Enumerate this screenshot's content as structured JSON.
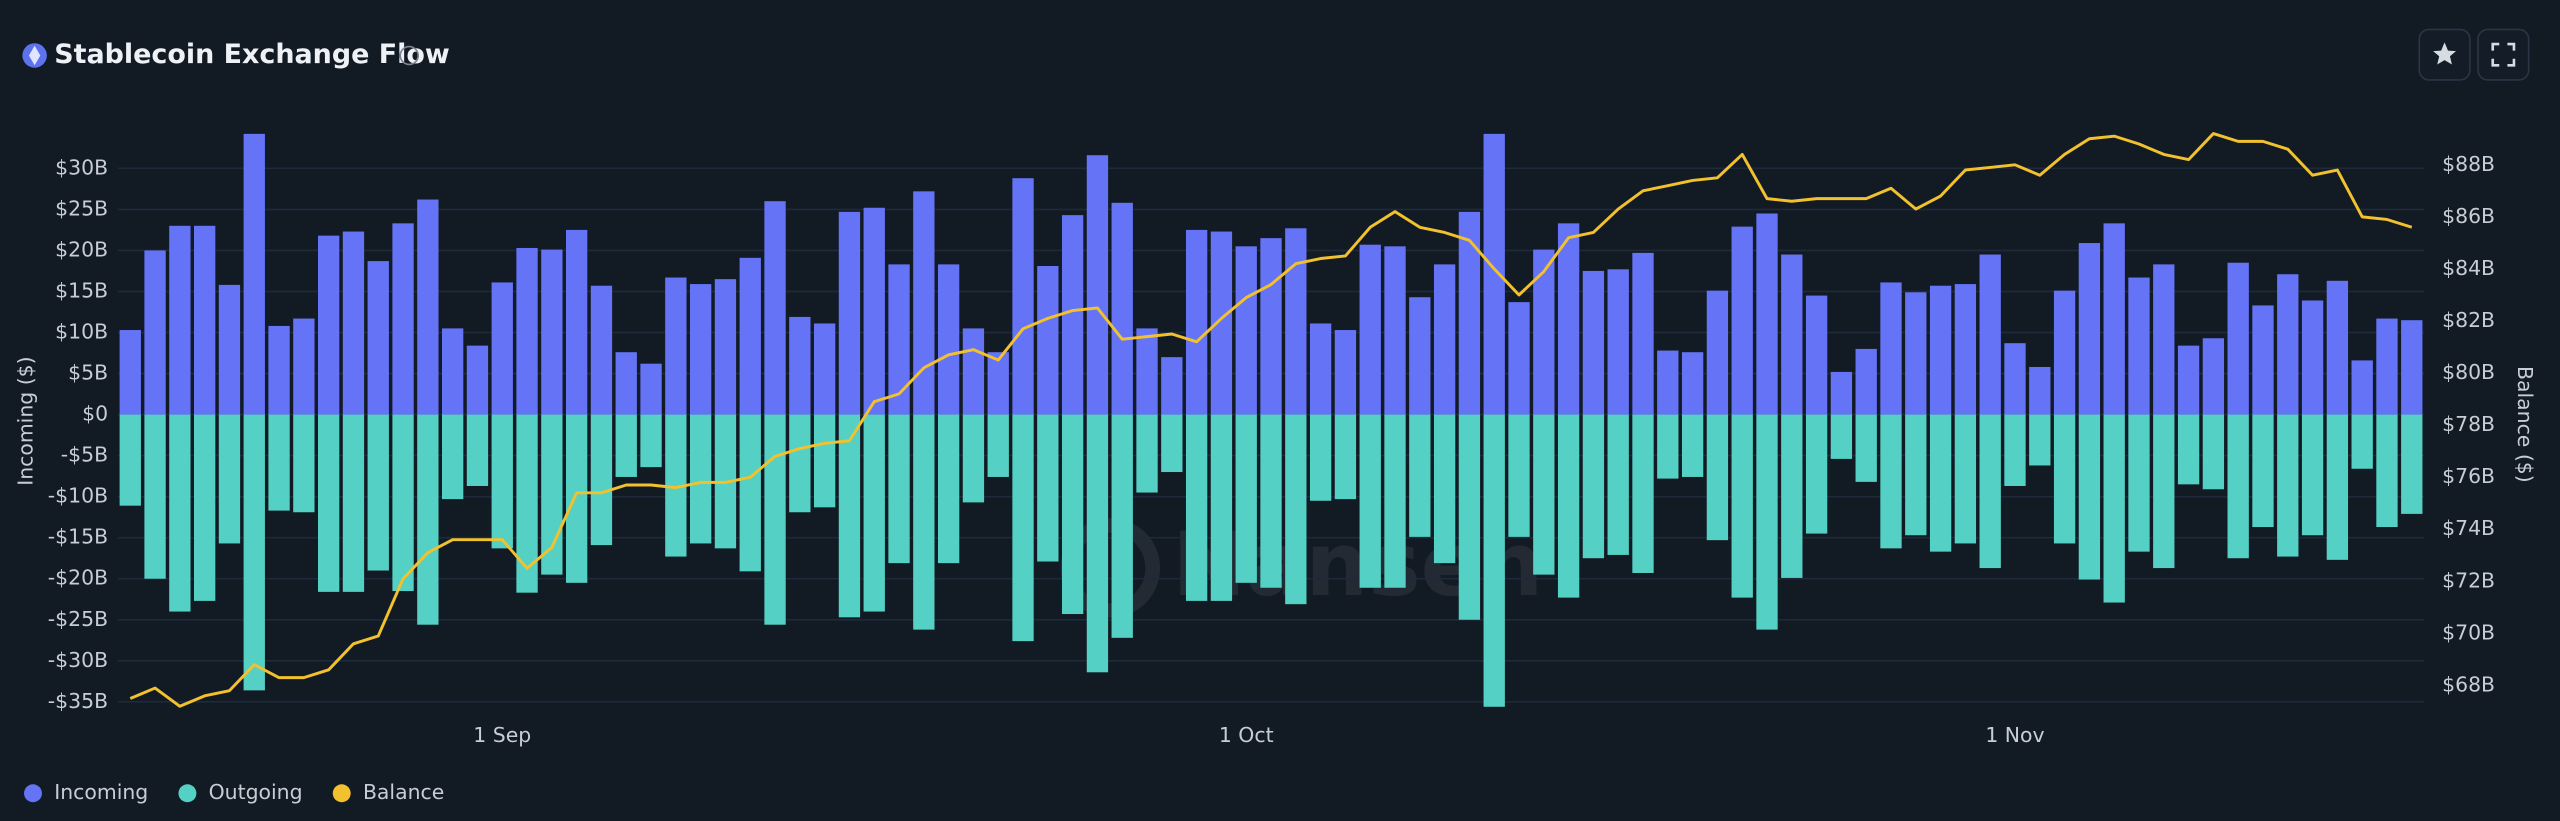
{
  "chart_data": {
    "type": "bar",
    "title": "Stablecoin Exchange Flow",
    "ylabel": "Incoming ($)",
    "y2label": "Balance ($)",
    "watermark": "Nansen",
    "categories": [
      null,
      null,
      null,
      null,
      null,
      null,
      null,
      null,
      null,
      null,
      null,
      null,
      null,
      null,
      null,
      "1 Sep",
      null,
      null,
      null,
      null,
      null,
      null,
      null,
      null,
      null,
      null,
      null,
      null,
      null,
      null,
      null,
      null,
      null,
      null,
      null,
      null,
      null,
      null,
      null,
      null,
      null,
      null,
      null,
      null,
      null,
      "1 Oct",
      null,
      null,
      null,
      null,
      null,
      null,
      null,
      null,
      null,
      null,
      null,
      null,
      null,
      null,
      null,
      null,
      null,
      null,
      null,
      null,
      null,
      null,
      null,
      null,
      null,
      null,
      null,
      null,
      null,
      null,
      "1 Nov",
      null,
      null,
      null,
      null,
      null,
      null,
      null,
      null,
      null,
      null,
      null,
      null,
      null,
      null,
      null,
      null
    ],
    "series": [
      {
        "name": "Incoming",
        "color": "#6574f6",
        "values": [
          10.3,
          20,
          23,
          23,
          15.8,
          34.2,
          10.8,
          11.7,
          21.8,
          22.3,
          18.7,
          23.3,
          26.2,
          10.5,
          8.4,
          16.1,
          20.3,
          20.1,
          22.5,
          15.7,
          7.6,
          6.2,
          16.7,
          15.9,
          16.5,
          19.1,
          26,
          11.9,
          11.1,
          24.7,
          25.2,
          18.3,
          27.2,
          18.3,
          10.5,
          7.6,
          28.8,
          18.1,
          24.3,
          31.6,
          25.8,
          10.5,
          7,
          22.5,
          22.3,
          20.5,
          21.5,
          22.7,
          11.1,
          10.3,
          20.7,
          20.5,
          14.3,
          18.3,
          24.7,
          34.2,
          13.7,
          20.1,
          23.3,
          17.5,
          17.7,
          19.7,
          7.8,
          7.6,
          15.1,
          22.9,
          24.5,
          19.5,
          14.5,
          5.2,
          8,
          16.1,
          14.9,
          15.7,
          15.9,
          19.5,
          8.7,
          5.8,
          15.1,
          20.9,
          23.3,
          16.7,
          18.3,
          8.4,
          9.3,
          18.5,
          13.3,
          17.1,
          13.9,
          16.3,
          6.6,
          11.7,
          11.5
        ]
      },
      {
        "name": "Outgoing",
        "color": "#55d0c4",
        "values": [
          -11.1,
          -20,
          -24,
          -22.7,
          -15.7,
          -33.6,
          -11.7,
          -11.9,
          -21.6,
          -21.6,
          -19,
          -21.5,
          -25.6,
          -10.3,
          -8.7,
          -16.3,
          -21.7,
          -19.5,
          -20.5,
          -15.9,
          -7.6,
          -6.4,
          -17.3,
          -15.7,
          -16.3,
          -19.1,
          -25.6,
          -11.9,
          -11.3,
          -24.7,
          -24,
          -18.1,
          -26.2,
          -18.1,
          -10.7,
          -7.6,
          -27.6,
          -17.9,
          -24.3,
          -31.4,
          -27.2,
          -9.5,
          -7,
          -22.7,
          -22.7,
          -20.5,
          -21.1,
          -23.1,
          -10.5,
          -10.3,
          -21.1,
          -21.1,
          -14.9,
          -18.1,
          -25,
          -35.6,
          -14.9,
          -19.5,
          -22.3,
          -17.5,
          -17.1,
          -19.3,
          -7.8,
          -7.6,
          -15.3,
          -22.3,
          -26.2,
          -19.9,
          -14.5,
          -5.4,
          -8.2,
          -16.3,
          -14.7,
          -16.7,
          -15.7,
          -18.7,
          -8.7,
          -6.2,
          -15.7,
          -20.1,
          -22.9,
          -16.7,
          -18.7,
          -8.5,
          -9.1,
          -17.5,
          -13.7,
          -17.3,
          -14.7,
          -17.7,
          -6.6,
          -13.7,
          -12.1
        ]
      },
      {
        "name": "Balance",
        "color": "#f2c12e",
        "axis": "y2",
        "type": "line",
        "values": [
          67.5,
          67.9,
          67.2,
          67.6,
          67.8,
          68.8,
          68.3,
          68.3,
          68.6,
          69.6,
          69.9,
          72.1,
          73.1,
          73.6,
          73.6,
          73.6,
          72.5,
          73.3,
          75.4,
          75.4,
          75.7,
          75.7,
          75.6,
          75.8,
          75.8,
          76,
          76.8,
          77.1,
          77.3,
          77.4,
          78.9,
          79.2,
          80.2,
          80.7,
          80.9,
          80.5,
          81.7,
          82.1,
          82.4,
          82.5,
          81.3,
          81.4,
          81.5,
          81.2,
          82.1,
          82.9,
          83.4,
          84.2,
          84.4,
          84.5,
          85.6,
          86.2,
          85.6,
          85.4,
          85.1,
          84,
          83,
          83.9,
          85.2,
          85.4,
          86.3,
          87,
          87.2,
          87.4,
          87.5,
          88.4,
          86.7,
          86.6,
          86.7,
          86.7,
          86.7,
          87.1,
          86.3,
          86.8,
          87.8,
          87.9,
          88,
          87.6,
          88.4,
          89,
          89.1,
          88.8,
          88.4,
          88.2,
          89.2,
          88.9,
          88.9,
          88.6,
          87.6,
          87.8,
          86,
          85.9,
          85.6
        ]
      }
    ],
    "ylim": [
      -35,
      35
    ],
    "yticks": [
      {
        "value": 30,
        "label": "$30B"
      },
      {
        "value": 25,
        "label": "$25B"
      },
      {
        "value": 20,
        "label": "$20B"
      },
      {
        "value": 15,
        "label": "$15B"
      },
      {
        "value": 10,
        "label": "$10B"
      },
      {
        "value": 5,
        "label": "$5B"
      },
      {
        "value": 0,
        "label": "$0"
      },
      {
        "value": -5,
        "label": "-$5B"
      },
      {
        "value": -10,
        "label": "-$10B"
      },
      {
        "value": -15,
        "label": "-$15B"
      },
      {
        "value": -20,
        "label": "-$20B"
      },
      {
        "value": -25,
        "label": "-$25B"
      },
      {
        "value": -30,
        "label": "-$30B"
      },
      {
        "value": -35,
        "label": "-$35B"
      }
    ],
    "y2lim": [
      67.37,
      89.44
    ],
    "y2ticks": [
      {
        "value": 88,
        "label": "$88B"
      },
      {
        "value": 86,
        "label": "$86B"
      },
      {
        "value": 84,
        "label": "$84B"
      },
      {
        "value": 82,
        "label": "$82B"
      },
      {
        "value": 80,
        "label": "$80B"
      },
      {
        "value": 78,
        "label": "$78B"
      },
      {
        "value": 76,
        "label": "$76B"
      },
      {
        "value": 74,
        "label": "$74B"
      },
      {
        "value": 72,
        "label": "$72B"
      },
      {
        "value": 70,
        "label": "$70B"
      },
      {
        "value": 68,
        "label": "$68B"
      }
    ],
    "grid": true,
    "legend": "bottom-left"
  }
}
